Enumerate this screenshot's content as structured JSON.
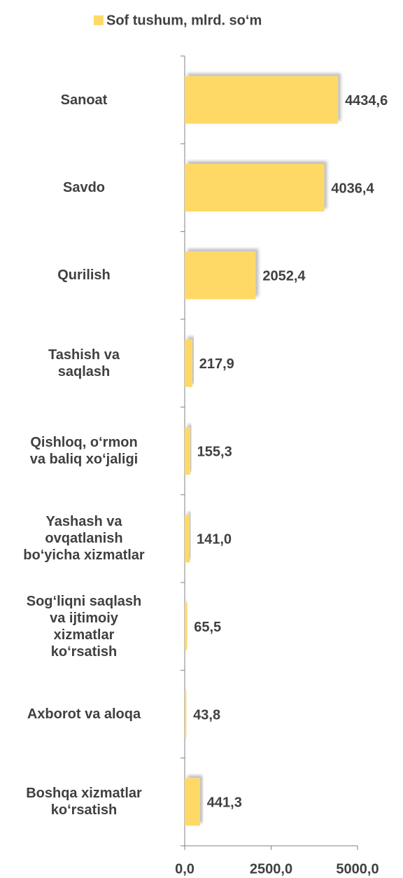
{
  "chart_data": {
    "type": "bar",
    "orientation": "horizontal",
    "series": [
      {
        "name": "Sof tushum, mlrd. so‘m",
        "color": "#ffd966",
        "values": [
          4434.6,
          4036.4,
          2052.4,
          217.9,
          155.3,
          141.0,
          65.5,
          43.8,
          441.3
        ],
        "value_labels": [
          "4434,6",
          "4036,4",
          "2052,4",
          "217,9",
          "155,3",
          "141,0",
          "65,5",
          "43,8",
          "441,3"
        ]
      }
    ],
    "categories": [
      "Sanoat",
      "Savdo",
      "Qurilish",
      "Tashish va\nsaqlash",
      "Qishloq, o‘rmon\nva baliq xo‘jaligi",
      "Yashash va\novqatlanish\nbo‘yicha xizmatlar",
      "Sog‘liqni saqlash\nva ijtimoiy\nxizmatlar\nko‘rsatish",
      "Axborot va aloqa",
      "Boshqa xizmatlar\nko‘rsatish"
    ],
    "xlim": [
      0,
      5000
    ],
    "xticks": [
      {
        "value": 0,
        "label": "0,0"
      },
      {
        "value": 2500,
        "label": "2500,0"
      },
      {
        "value": 5000,
        "label": "5000,0"
      }
    ],
    "legend": "top"
  }
}
